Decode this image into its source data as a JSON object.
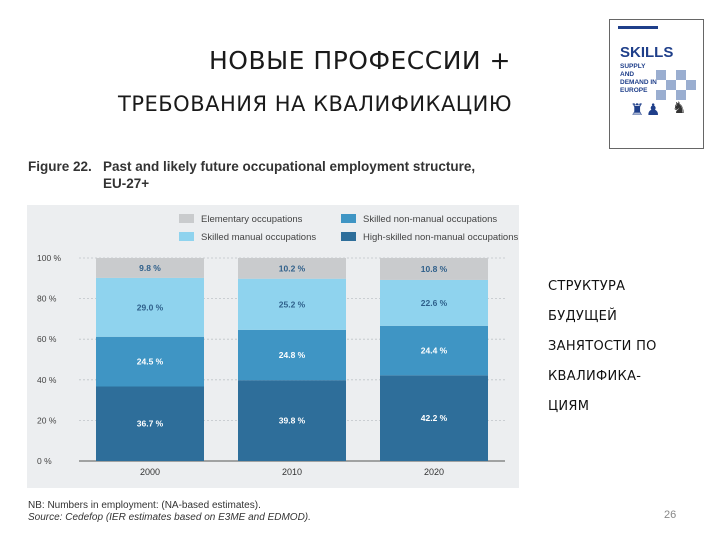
{
  "slide": {
    "title_line1": "НОВЫЕ ПРОФЕССИИ +",
    "title_line2": "ТРЕБОВАНИЯ НА КВАЛИФИКАЦИЮ",
    "side_text": [
      "СТРУКТУРА",
      "БУДУЩЕЙ",
      "ЗАНЯТОСТИ ПО",
      "КВАЛИФИКА-",
      "ЦИЯМ"
    ],
    "page_number": "26"
  },
  "cover": {
    "title": "SKILLS",
    "subtitle": "SUPPLY AND DEMAND IN EUROPE"
  },
  "figure": {
    "number": "Figure 22.",
    "title_line1": "Past and likely future occupational employment structure,",
    "title_line2": "EU-27+",
    "note": "NB: Numbers in employment: (NA-based estimates).",
    "source": "Source: Cedefop (IER estimates based on E3ME and EDMOD)."
  },
  "chart_data": {
    "type": "bar",
    "stacked": true,
    "categories": [
      "2000",
      "2010",
      "2020"
    ],
    "ylim": [
      0,
      100
    ],
    "yticks": [
      "0 %",
      "20 %",
      "40 %",
      "60 %",
      "80 %",
      "100 %"
    ],
    "legend_position": "top",
    "series": [
      {
        "name": "High-skilled non-manual occupations",
        "values": [
          36.7,
          39.8,
          42.2
        ],
        "color": "#2e6e9a",
        "labels": [
          "36.7 %",
          "39.8 %",
          "42.2 %"
        ]
      },
      {
        "name": "Skilled non-manual occupations",
        "values": [
          24.5,
          24.8,
          24.4
        ],
        "color": "#3f95c4",
        "labels": [
          "24.5 %",
          "24.8 %",
          "24.4 %"
        ]
      },
      {
        "name": "Skilled manual occupations",
        "values": [
          29.0,
          25.2,
          22.6
        ],
        "color": "#8fd3ee",
        "labels": [
          "29.0 %",
          "25.2 %",
          "22.6 %"
        ]
      },
      {
        "name": "Elementary occupations",
        "values": [
          9.8,
          10.2,
          10.8
        ],
        "color": "#c9cbcd",
        "labels": [
          "9.8 %",
          "10.2 %",
          "10.8 %"
        ]
      }
    ],
    "legend_order": [
      "Elementary occupations",
      "Skilled non-manual occupations",
      "Skilled manual occupations",
      "High-skilled non-manual occupations"
    ],
    "label_colors": {
      "dark": "#ffffff",
      "light": "#2e5f8a"
    }
  }
}
